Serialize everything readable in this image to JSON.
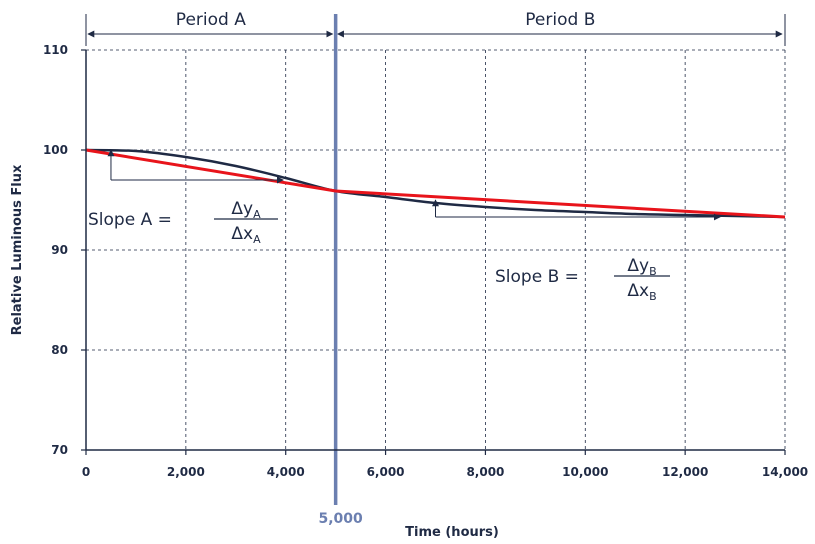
{
  "chart_data": {
    "type": "line",
    "title": "",
    "xlabel": "Time (hours)",
    "ylabel": "Relative Luminous Flux",
    "xlim": [
      0,
      14000
    ],
    "ylim": [
      70,
      110
    ],
    "x_ticks": [
      0,
      2000,
      4000,
      6000,
      8000,
      10000,
      12000,
      14000
    ],
    "x_tick_labels": [
      "0",
      "2,000",
      "4,000",
      "6,000",
      "8,000",
      "10,000",
      "12,000",
      "14,000"
    ],
    "y_ticks": [
      70,
      80,
      90,
      100,
      110
    ],
    "y_tick_labels": [
      "70",
      "80",
      "90",
      "100",
      "110"
    ],
    "grid": true,
    "series": [
      {
        "color": "#1f2a44",
        "x": [
          0,
          1000,
          2000,
          3000,
          4000,
          5000,
          6000,
          7000,
          8000,
          9000,
          10000,
          11000,
          12000,
          13000,
          14000
        ],
        "values": [
          100,
          99.9,
          99.3,
          98.4,
          97.2,
          95.9,
          95.3,
          94.7,
          94.3,
          94.0,
          93.8,
          93.6,
          93.5,
          93.4,
          93.3
        ]
      },
      {
        "color": "#e8141b",
        "x": [
          0,
          5000,
          14000
        ],
        "values": [
          100,
          95.9,
          93.3
        ]
      }
    ],
    "boundary": {
      "x": 5000,
      "label": "5,000",
      "color": "#6b7fb0"
    },
    "periods": [
      {
        "label": "Period A",
        "x_start": 0,
        "x_end": 5000
      },
      {
        "label": "Period B",
        "x_start": 5000,
        "x_end": 14000
      }
    ],
    "annotations": [
      {
        "prefix": "Slope A =",
        "numerator": "Δy",
        "numerator_sub": "A",
        "denominator": "Δx",
        "denominator_sub": "A"
      },
      {
        "prefix": "Slope B =",
        "numerator": "Δy",
        "numerator_sub": "B",
        "denominator": "Δx",
        "denominator_sub": "B"
      }
    ]
  }
}
